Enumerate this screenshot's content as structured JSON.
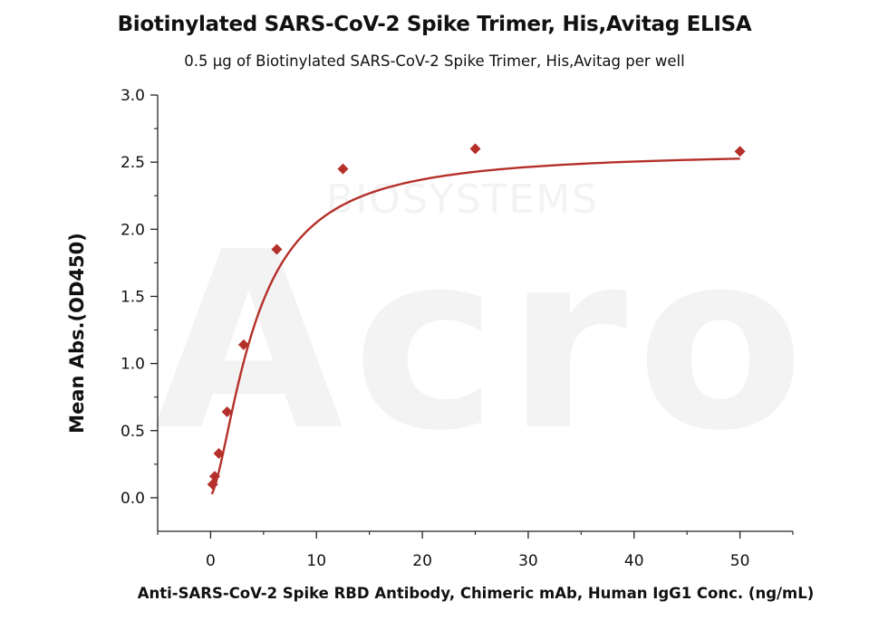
{
  "chart_data": {
    "type": "scatter",
    "title": "Biotinylated SARS-CoV-2 Spike Trimer, His,Avitag ELISA",
    "subtitle": "0.5 μg of Biotinylated SARS-CoV-2 Spike Trimer, His,Avitag per well",
    "xlabel": "Anti-SARS-CoV-2 Spike RBD Antibody, Chimeric mAb, Human IgG1 Conc. (ng/mL)",
    "ylabel": "Mean Abs.(OD450)",
    "xlim": [
      -5,
      55
    ],
    "ylim": [
      -0.25,
      3.0
    ],
    "xticks": [
      "0",
      "10",
      "20",
      "30",
      "40",
      "50"
    ],
    "xtick_values": [
      0,
      10,
      20,
      30,
      40,
      50
    ],
    "yticks": [
      "0.0",
      "0.5",
      "1.0",
      "1.5",
      "2.0",
      "2.5",
      "3.0"
    ],
    "ytick_values": [
      0,
      0.5,
      1.0,
      1.5,
      2.0,
      2.5,
      3.0
    ],
    "series": [
      {
        "x": [
          0.195,
          0.39,
          0.78,
          1.56,
          3.125,
          6.25,
          12.5,
          25,
          50
        ],
        "values": [
          0.1,
          0.16,
          0.33,
          0.64,
          1.14,
          1.85,
          2.45,
          2.6,
          2.58
        ],
        "fit": "4PL",
        "color": "#b5302a"
      }
    ],
    "watermark": {
      "logo": "Acro",
      "text": "BIOSYSTEMS"
    },
    "grid": false,
    "legend": "none"
  }
}
